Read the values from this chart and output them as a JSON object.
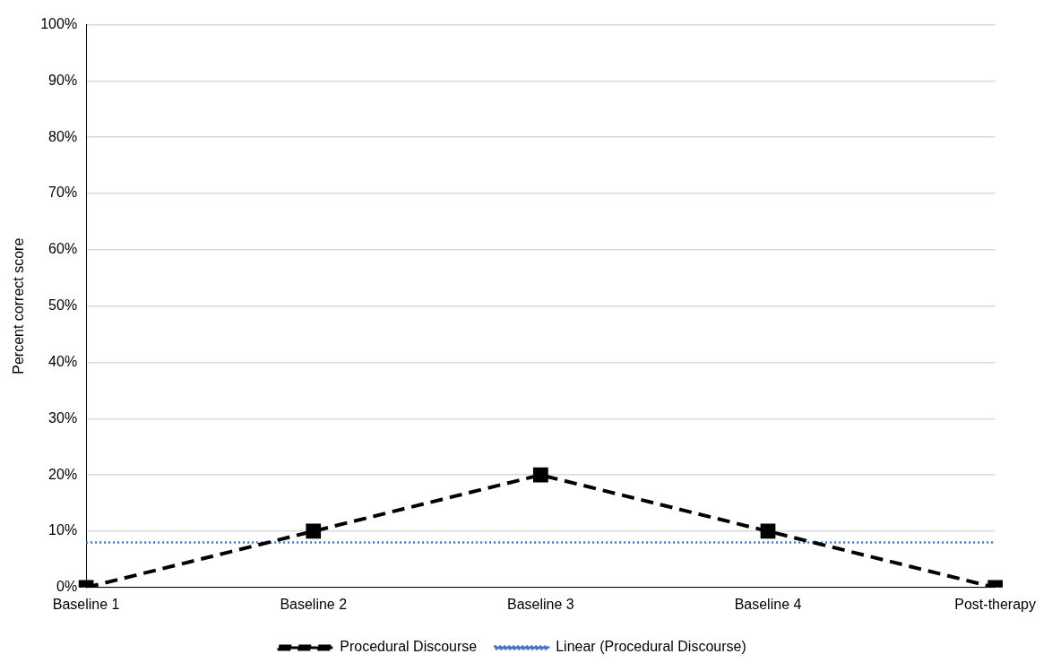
{
  "chart_data": {
    "type": "line",
    "ylabel": "Percent correct score",
    "categories": [
      "Baseline 1",
      "Baseline 2",
      "Baseline 3",
      "Baseline 4",
      "Post-therapy"
    ],
    "series": [
      {
        "name": "Procedural Discourse",
        "color": "#000000",
        "values": [
          0,
          10,
          20,
          10,
          0
        ],
        "marker": "square",
        "line_style": "dashed"
      },
      {
        "name": "Linear (Procedural Discourse)",
        "type": "line",
        "color": "#4472c4",
        "values": [
          8,
          8,
          8,
          8,
          8
        ],
        "marker": "none",
        "line_style": "dotted"
      }
    ],
    "ylim": [
      0,
      100
    ],
    "yticks": [
      {
        "value": 0,
        "label": "0%"
      },
      {
        "value": 10,
        "label": "10%"
      },
      {
        "value": 20,
        "label": "20%"
      },
      {
        "value": 30,
        "label": "30%"
      },
      {
        "value": 40,
        "label": "40%"
      },
      {
        "value": 50,
        "label": "50%"
      },
      {
        "value": 60,
        "label": "60%"
      },
      {
        "value": 70,
        "label": "70%"
      },
      {
        "value": 80,
        "label": "80%"
      },
      {
        "value": 90,
        "label": "90%"
      },
      {
        "value": 100,
        "label": "100%"
      }
    ],
    "grid": "y",
    "legend": "bottom"
  }
}
